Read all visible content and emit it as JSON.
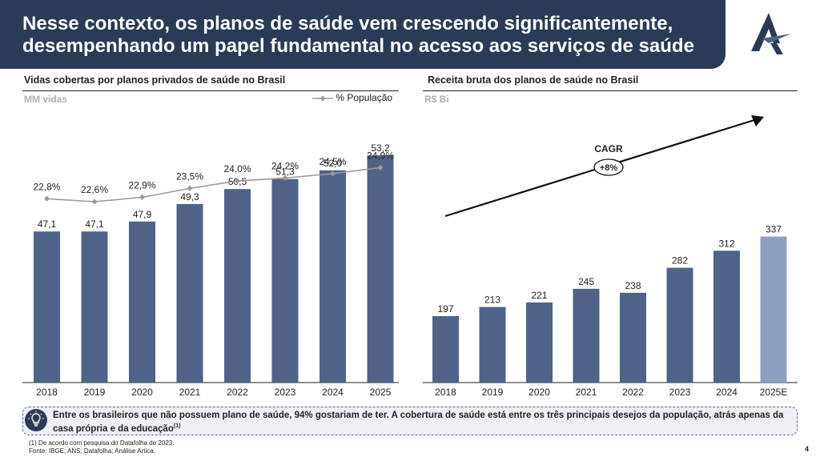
{
  "header": {
    "title": "Nesse contexto, os planos de saúde vem crescendo significantemente, desempenhando um papel fundamental no acesso aos serviços de saúde"
  },
  "colors": {
    "header_bg": "#2b3a55",
    "bar": "#4f6388",
    "bar_estimate": "#8e9fbf",
    "line": "#9a9a9a"
  },
  "left_panel": {
    "title": "Vidas cobertas por planos privados de saúde no Brasil",
    "unit": "MM vidas",
    "legend": "% População"
  },
  "right_panel": {
    "title": "Receita bruta dos planos de saúde no Brasil",
    "unit": "R$ Bi",
    "cagr_label": "CAGR",
    "cagr_value": "+8%"
  },
  "chart_data": [
    {
      "type": "bar",
      "title": "Vidas cobertas por planos privados de saúde no Brasil",
      "unit": "MM vidas",
      "categories": [
        "2018",
        "2019",
        "2020",
        "2021",
        "2022",
        "2023",
        "2024",
        "2025"
      ],
      "values": [
        47.1,
        47.1,
        47.9,
        49.3,
        50.5,
        51.3,
        52.0,
        53.2
      ],
      "value_labels": [
        "47,1",
        "47,1",
        "47,9",
        "49,3",
        "50,5",
        "51,3",
        "52,0",
        "53,2"
      ],
      "line_series": {
        "name": "% População",
        "values": [
          22.8,
          22.6,
          22.9,
          23.5,
          24.0,
          24.2,
          24.5,
          24.9
        ],
        "labels": [
          "22,8%",
          "22,6%",
          "22,9%",
          "23,5%",
          "24,0%",
          "24,2%",
          "24,5%",
          "24,9%"
        ]
      }
    },
    {
      "type": "bar",
      "title": "Receita bruta dos planos de saúde no Brasil",
      "unit": "R$ Bi",
      "categories": [
        "2018",
        "2019",
        "2020",
        "2021",
        "2022",
        "2023",
        "2024",
        "2025E"
      ],
      "values": [
        197,
        213,
        221,
        245,
        238,
        282,
        312,
        337
      ],
      "value_labels": [
        "197",
        "213",
        "221",
        "245",
        "238",
        "282",
        "312",
        "337"
      ],
      "estimate_index": 7,
      "annotation": {
        "label": "CAGR",
        "value": "+8%"
      }
    }
  ],
  "footer": {
    "text": "Entre os brasileiros que não possuem plano de saúde, 94% gostariam de ter. A cobertura de saúde está entre os três principais desejos da população, atrás apenas da casa própria e da educação",
    "superscript": "(1)",
    "note": "(1) De acordo com pesquisa do Datafolha de 2023.",
    "source": "Fonte: IBGE; ANS; Datafolha; Análise Artica."
  },
  "page_number": "4"
}
